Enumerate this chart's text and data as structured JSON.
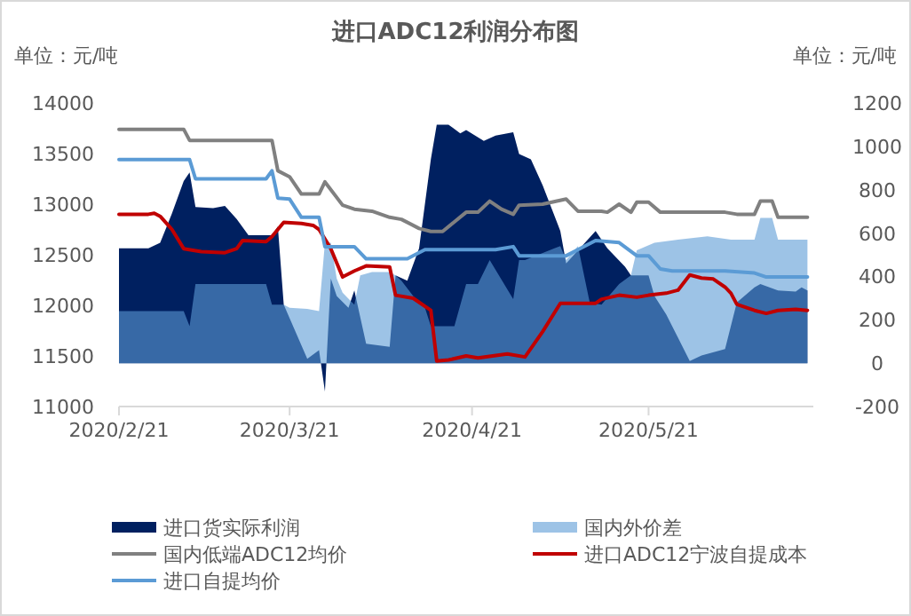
{
  "chart_data": {
    "type": "area",
    "title": "进口ADC12利润分布图",
    "annotations": [
      "单位：元/吨",
      "单位：元/吨"
    ],
    "xlim": [
      "2020-02-21",
      "2020-06-18"
    ],
    "xticks": [
      {
        "value": "2020-02-21",
        "label": "2020/2/21"
      },
      {
        "value": "2020-03-21",
        "label": "2020/3/21"
      },
      {
        "value": "2020-04-21",
        "label": "2020/4/21"
      },
      {
        "value": "2020-05-21",
        "label": "2020/5/21"
      }
    ],
    "ylim": [
      11000,
      14000
    ],
    "yticks": [
      11000,
      11500,
      12000,
      12500,
      13000,
      13500,
      14000
    ],
    "y2lim": [
      -200,
      1200
    ],
    "y2ticks": [
      -200,
      0,
      200,
      400,
      600,
      800,
      1000,
      1200
    ],
    "grid": false,
    "legend": "bottom",
    "series": [
      {
        "name": "进口货实际利润",
        "axis": "y2",
        "color": "#002060",
        "x": [
          "2020-02-21",
          "2020-02-26",
          "2020-02-28",
          "2020-03-01",
          "2020-03-03",
          "2020-03-04",
          "2020-03-05",
          "2020-03-08",
          "2020-03-10",
          "2020-03-12",
          "2020-03-14",
          "2020-03-18",
          "2020-03-19",
          "2020-03-20",
          "2020-03-24",
          "2020-03-26",
          "2020-03-27",
          "2020-03-28",
          "2020-03-29",
          "2020-03-31",
          "2020-04-01",
          "2020-04-03",
          "2020-04-07",
          "2020-04-08",
          "2020-04-10",
          "2020-04-12",
          "2020-04-14",
          "2020-04-15",
          "2020-04-17",
          "2020-04-19",
          "2020-04-20",
          "2020-04-23",
          "2020-04-25",
          "2020-04-28",
          "2020-04-29",
          "2020-05-01",
          "2020-05-03",
          "2020-05-06",
          "2020-05-07",
          "2020-05-12",
          "2020-05-14",
          "2020-05-17",
          "2020-05-18",
          "2020-05-21",
          "2020-05-22",
          "2020-05-24",
          "2020-05-28",
          "2020-05-30",
          "2020-06-03",
          "2020-06-05",
          "2020-06-08",
          "2020-06-09",
          "2020-06-12",
          "2020-06-15",
          "2020-06-16",
          "2020-06-17"
        ],
        "values": [
          530,
          530,
          555,
          690,
          840,
          880,
          720,
          715,
          725,
          665,
          590,
          590,
          630,
          270,
          20,
          60,
          -130,
          390,
          310,
          255,
          335,
          90,
          75,
          405,
          380,
          530,
          940,
          1100,
          1100,
          1060,
          1075,
          1025,
          1050,
          1065,
          965,
          940,
          820,
          610,
          460,
          610,
          530,
          445,
          405,
          405,
          310,
          225,
          10,
          35,
          65,
          280,
          350,
          365,
          335,
          330,
          350,
          335
        ]
      },
      {
        "name": "国内外价差",
        "axis": "y2",
        "color": "#5b9bd5",
        "x": [
          "2020-02-21",
          "2020-03-03",
          "2020-03-04",
          "2020-03-05",
          "2020-03-17",
          "2020-03-18",
          "2020-03-20",
          "2020-03-21",
          "2020-03-24",
          "2020-03-26",
          "2020-03-27",
          "2020-03-28",
          "2020-03-29",
          "2020-03-30",
          "2020-04-01",
          "2020-04-02",
          "2020-04-04",
          "2020-04-07",
          "2020-04-08",
          "2020-04-09",
          "2020-04-11",
          "2020-04-13",
          "2020-04-14",
          "2020-04-18",
          "2020-04-20",
          "2020-04-22",
          "2020-04-24",
          "2020-04-28",
          "2020-04-29",
          "2020-04-30",
          "2020-05-05",
          "2020-05-06",
          "2020-05-07",
          "2020-05-09",
          "2020-05-11",
          "2020-05-13",
          "2020-05-16",
          "2020-05-18",
          "2020-05-19",
          "2020-05-22",
          "2020-05-26",
          "2020-05-31",
          "2020-06-04",
          "2020-06-08",
          "2020-06-09",
          "2020-06-11",
          "2020-06-12",
          "2020-06-17"
        ],
        "values": [
          240,
          240,
          170,
          365,
          365,
          270,
          270,
          255,
          250,
          240,
          555,
          555,
          390,
          325,
          270,
          405,
          420,
          420,
          405,
          380,
          310,
          255,
          170,
          170,
          365,
          365,
          475,
          295,
          475,
          475,
          530,
          540,
          475,
          540,
          280,
          270,
          365,
          405,
          520,
          555,
          570,
          585,
          570,
          570,
          670,
          670,
          570,
          570
        ]
      },
      {
        "name": "国内低端ADC12均价",
        "type": "line",
        "color": "#808080",
        "x": [
          "2020-02-21",
          "2020-03-03",
          "2020-03-04",
          "2020-03-18",
          "2020-03-19",
          "2020-03-21",
          "2020-03-23",
          "2020-03-26",
          "2020-03-27",
          "2020-03-30",
          "2020-04-01",
          "2020-04-04",
          "2020-04-07",
          "2020-04-09",
          "2020-04-12",
          "2020-04-14",
          "2020-04-16",
          "2020-04-20",
          "2020-04-22",
          "2020-04-24",
          "2020-04-26",
          "2020-04-28",
          "2020-04-29",
          "2020-05-03",
          "2020-05-07",
          "2020-05-09",
          "2020-05-13",
          "2020-05-14",
          "2020-05-16",
          "2020-05-18",
          "2020-05-19",
          "2020-05-21",
          "2020-05-23",
          "2020-06-03",
          "2020-06-05",
          "2020-06-08",
          "2020-06-09",
          "2020-06-11",
          "2020-06-12",
          "2020-06-17"
        ],
        "values": [
          13740,
          13740,
          13630,
          13630,
          13330,
          13270,
          13100,
          13100,
          13220,
          12990,
          12950,
          12930,
          12870,
          12850,
          12760,
          12730,
          12730,
          12920,
          12920,
          13030,
          12950,
          12900,
          12990,
          13000,
          13050,
          12930,
          12930,
          12920,
          13000,
          12920,
          13020,
          13020,
          12920,
          12920,
          12900,
          12900,
          13030,
          13030,
          12870,
          12870
        ]
      },
      {
        "name": "进口ADC12宁波自提成本",
        "type": "line",
        "color": "#c00000",
        "x": [
          "2020-02-21",
          "2020-02-26",
          "2020-02-27",
          "2020-02-28",
          "2020-03-01",
          "2020-03-03",
          "2020-03-06",
          "2020-03-10",
          "2020-03-12",
          "2020-03-13",
          "2020-03-17",
          "2020-03-18",
          "2020-03-20",
          "2020-03-23",
          "2020-03-25",
          "2020-03-26",
          "2020-03-28",
          "2020-03-30",
          "2020-04-01",
          "2020-04-03",
          "2020-04-07",
          "2020-04-08",
          "2020-04-11",
          "2020-04-14",
          "2020-04-15",
          "2020-04-17",
          "2020-04-20",
          "2020-04-22",
          "2020-04-27",
          "2020-04-30",
          "2020-05-03",
          "2020-05-06",
          "2020-05-12",
          "2020-05-13",
          "2020-05-16",
          "2020-05-19",
          "2020-05-21",
          "2020-05-24",
          "2020-05-26",
          "2020-05-28",
          "2020-05-30",
          "2020-06-01",
          "2020-06-03",
          "2020-06-04",
          "2020-06-05",
          "2020-06-08",
          "2020-06-10",
          "2020-06-12",
          "2020-06-15",
          "2020-06-17"
        ],
        "values": [
          12900,
          12900,
          12910,
          12880,
          12750,
          12560,
          12530,
          12520,
          12560,
          12640,
          12630,
          12680,
          12820,
          12810,
          12790,
          12750,
          12560,
          12280,
          12340,
          12390,
          12380,
          12100,
          12070,
          11950,
          11450,
          11460,
          11500,
          11480,
          11520,
          11490,
          11740,
          12020,
          12020,
          12060,
          12100,
          12080,
          12100,
          12120,
          12150,
          12300,
          12270,
          12260,
          12180,
          12120,
          12010,
          11950,
          11920,
          11950,
          11960,
          11950
        ]
      },
      {
        "name": "进口自提均价",
        "type": "line",
        "color": "#5b9bd5",
        "x": [
          "2020-02-21",
          "2020-03-04",
          "2020-03-05",
          "2020-03-17",
          "2020-03-18",
          "2020-03-19",
          "2020-03-21",
          "2020-03-23",
          "2020-03-26",
          "2020-03-27",
          "2020-04-01",
          "2020-04-03",
          "2020-04-10",
          "2020-04-13",
          "2020-04-25",
          "2020-04-28",
          "2020-04-29",
          "2020-05-07",
          "2020-05-09",
          "2020-05-12",
          "2020-05-16",
          "2020-05-19",
          "2020-05-21",
          "2020-05-23",
          "2020-05-25",
          "2020-06-03",
          "2020-06-08",
          "2020-06-10",
          "2020-06-17"
        ],
        "values": [
          13440,
          13440,
          13250,
          13250,
          13330,
          13060,
          13050,
          12870,
          12870,
          12580,
          12580,
          12460,
          12460,
          12550,
          12550,
          12580,
          12490,
          12490,
          12550,
          12640,
          12620,
          12490,
          12490,
          12360,
          12340,
          12340,
          12320,
          12280,
          12280
        ]
      }
    ]
  }
}
